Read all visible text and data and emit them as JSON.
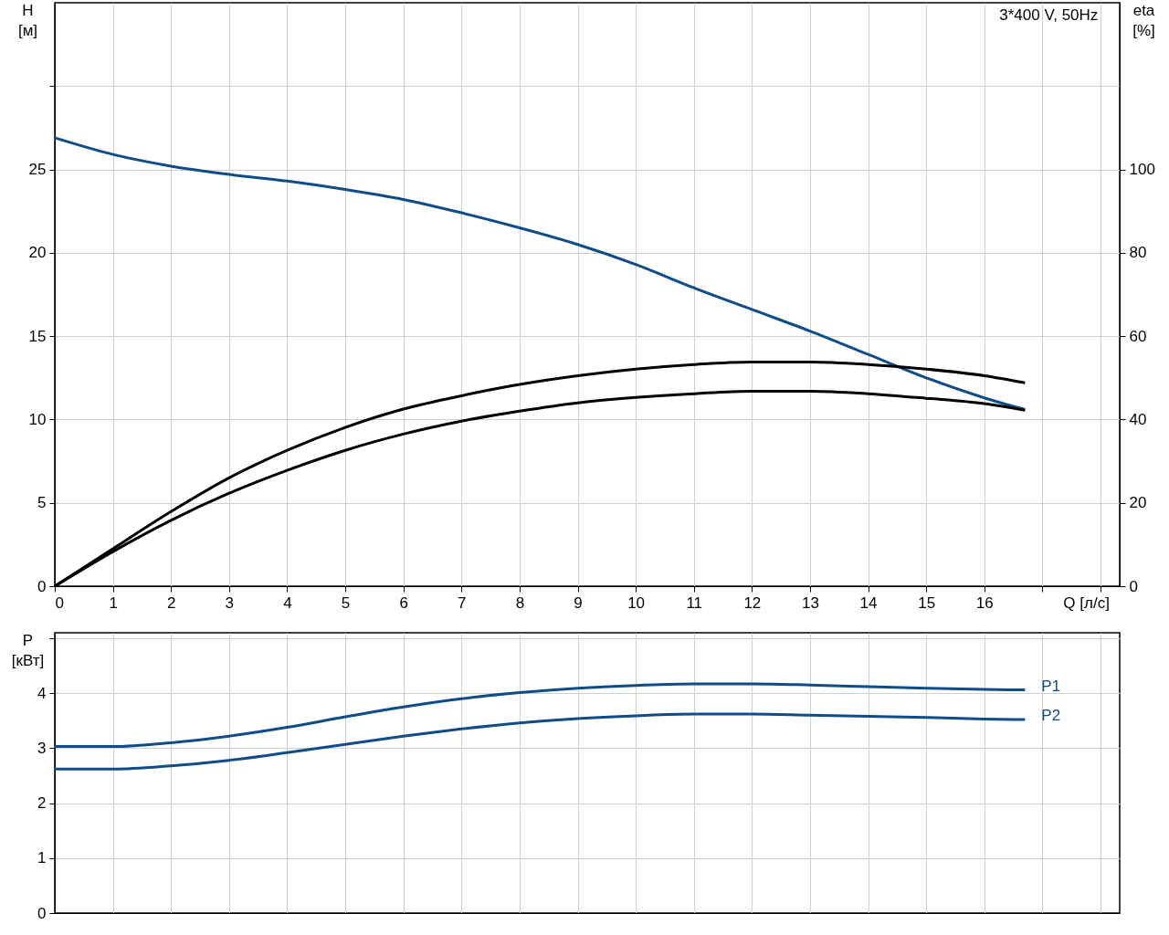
{
  "chart_data": [
    {
      "type": "line",
      "title": "3*400 V, 50Hz",
      "xlabel": "Q [л/с]",
      "ylabel": "H [м]",
      "y2label": "eta [%]",
      "x": [
        0,
        1,
        2,
        3,
        4,
        5,
        6,
        7,
        8,
        9,
        10,
        11,
        12,
        13,
        14,
        15,
        16,
        16.7
      ],
      "series": [
        {
          "color": "#0f4c8a",
          "values": [
            26.9,
            25.9,
            25.2,
            24.7,
            24.3,
            23.8,
            23.2,
            22.4,
            21.5,
            20.5,
            19.3,
            17.9,
            16.6,
            15.3,
            13.9,
            12.5,
            11.3,
            10.6
          ]
        },
        {
          "color": "#000000",
          "axis": "y2",
          "values": [
            0,
            9.0,
            17.9,
            26,
            32.6,
            38.1,
            42.5,
            45.7,
            48.4,
            50.5,
            52.1,
            53.2,
            53.8,
            53.8,
            53.2,
            52.1,
            50.5,
            48.8
          ]
        },
        {
          "color": "#000000",
          "axis": "y2",
          "values": [
            0,
            8.3,
            15.8,
            22.3,
            27.8,
            32.6,
            36.5,
            39.6,
            42,
            44,
            45.3,
            46.2,
            46.8,
            46.8,
            46.2,
            45.1,
            43.8,
            42.2
          ]
        }
      ],
      "xlim": [
        0,
        18.33
      ],
      "xticks": [
        0,
        1,
        2,
        3,
        4,
        5,
        6,
        7,
        8,
        9,
        10,
        11,
        12,
        13,
        14,
        15,
        16,
        {
          "value": 17,
          "label": null
        },
        {
          "value": 18,
          "label": null
        }
      ],
      "ylim": [
        0,
        35
      ],
      "yticks": [
        0,
        5,
        10,
        15,
        20,
        25,
        {
          "value": 30,
          "label": null
        }
      ],
      "y2lim": [
        0,
        140
      ],
      "y2ticks": [
        0,
        20,
        40,
        60,
        80,
        100
      ],
      "grid": true,
      "legend": false
    },
    {
      "type": "line",
      "ylabel": "P [кВт]",
      "x": [
        0,
        1,
        2,
        3,
        4,
        5,
        6,
        7,
        8,
        9,
        10,
        11,
        12,
        13,
        14,
        15,
        16,
        16.7
      ],
      "series": [
        {
          "name": "P1",
          "color": "#0f4c8a",
          "values": [
            3.03,
            3.03,
            3.1,
            3.22,
            3.38,
            3.57,
            3.75,
            3.9,
            4.01,
            4.09,
            4.14,
            4.17,
            4.17,
            4.15,
            4.12,
            4.09,
            4.07,
            4.06
          ]
        },
        {
          "name": "P2",
          "color": "#0f4c8a",
          "values": [
            2.62,
            2.62,
            2.68,
            2.78,
            2.92,
            3.07,
            3.22,
            3.35,
            3.46,
            3.54,
            3.59,
            3.62,
            3.62,
            3.6,
            3.58,
            3.56,
            3.53,
            3.52
          ]
        }
      ],
      "xlim": [
        0,
        18.33
      ],
      "xticks": [
        0,
        1,
        2,
        3,
        4,
        5,
        6,
        7,
        8,
        9,
        10,
        11,
        12,
        13,
        14,
        15,
        16,
        17,
        18
      ],
      "ylim": [
        0,
        5.1
      ],
      "yticks": [
        0,
        1,
        2,
        3,
        4,
        {
          "value": 5,
          "label": null
        }
      ],
      "tick_labels": "y",
      "grid": true,
      "legend": false
    }
  ]
}
